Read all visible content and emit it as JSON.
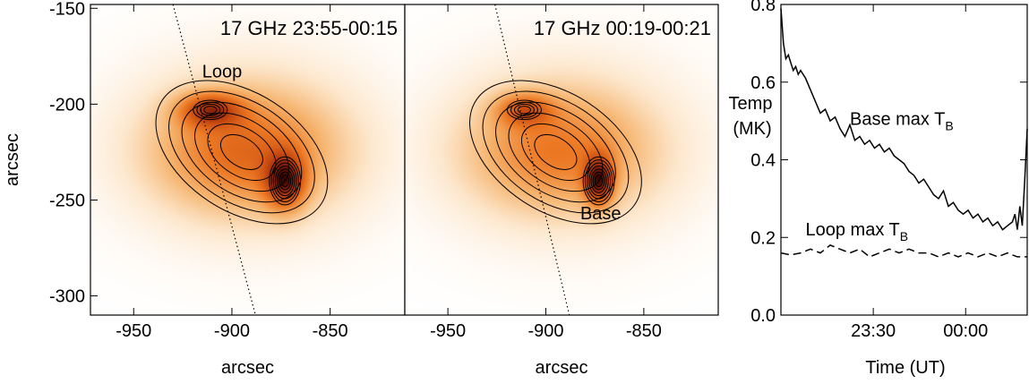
{
  "chart_data": [
    {
      "type": "heatmap",
      "title": "17 GHz 23:55-00:15",
      "xlabel": "arcsec",
      "ylabel": "arcsec",
      "xlim": [
        -972,
        -812
      ],
      "ylim": [
        -310,
        -148
      ],
      "xticks": [
        "-950",
        "-900",
        "-850"
      ],
      "yticks": [
        "-150",
        "-200",
        "-250",
        "-300"
      ],
      "annotations": [
        {
          "text": "Loop",
          "x": -905,
          "y": -186
        }
      ],
      "sources": [
        {
          "x": -873,
          "y": -240,
          "sx": 7,
          "sy": 10,
          "amp": 1.0
        },
        {
          "x": -911,
          "y": -203,
          "sx": 11,
          "sy": 6,
          "amp": 0.85
        },
        {
          "x": -895,
          "y": -225,
          "sx": 30,
          "sy": 20,
          "amp": 0.55
        },
        {
          "x": -890,
          "y": -222,
          "sx": 40,
          "sy": 30,
          "amp": 0.3
        }
      ],
      "dotted_line": [
        [
          -930,
          -148
        ],
        [
          -888,
          -310
        ]
      ]
    },
    {
      "type": "heatmap",
      "title": "17 GHz 00:19-00:21",
      "xlabel": "arcsec",
      "ylabel": "",
      "xlim": [
        -972,
        -812
      ],
      "ylim": [
        -310,
        -148
      ],
      "xticks": [
        "-950",
        "-900",
        "-850"
      ],
      "yticks": [],
      "annotations": [
        {
          "text": "Base",
          "x": -872,
          "y": -260
        }
      ],
      "sources": [
        {
          "x": -873,
          "y": -240,
          "sx": 5,
          "sy": 9,
          "amp": 1.0
        },
        {
          "x": -911,
          "y": -203,
          "sx": 10,
          "sy": 6,
          "amp": 0.6
        },
        {
          "x": -895,
          "y": -225,
          "sx": 30,
          "sy": 20,
          "amp": 0.45
        },
        {
          "x": -890,
          "y": -222,
          "sx": 40,
          "sy": 30,
          "amp": 0.25
        }
      ],
      "dotted_line": [
        [
          -926,
          -148
        ],
        [
          -888,
          -310
        ]
      ]
    },
    {
      "type": "line",
      "title": "",
      "xlabel": "Time (UT)",
      "ylabel": "Temp (MK)",
      "xlim": [
        0,
        100
      ],
      "ylim": [
        0,
        0.8
      ],
      "xticks": [
        "23:30",
        "00:00"
      ],
      "xtick_positions": [
        37.5,
        75
      ],
      "yticks": [
        "0.0",
        "0.2",
        "0.4",
        "0.6",
        "0.8"
      ],
      "series": [
        {
          "name": "Base max T_B",
          "style": "solid",
          "x": [
            0,
            1,
            2,
            3,
            4,
            5,
            6,
            7,
            8,
            10,
            12,
            14,
            16,
            18,
            20,
            22,
            24,
            26,
            28,
            30,
            32,
            34,
            36,
            38,
            40,
            42,
            44,
            46,
            48,
            50,
            52,
            54,
            56,
            58,
            60,
            62,
            64,
            66,
            68,
            70,
            72,
            74,
            76,
            78,
            80,
            82,
            84,
            86,
            88,
            90,
            92,
            94,
            95,
            96,
            97,
            98,
            99,
            100
          ],
          "values": [
            0.79,
            0.7,
            0.66,
            0.67,
            0.65,
            0.63,
            0.64,
            0.62,
            0.63,
            0.61,
            0.58,
            0.55,
            0.52,
            0.53,
            0.5,
            0.51,
            0.48,
            0.46,
            0.49,
            0.45,
            0.46,
            0.44,
            0.45,
            0.43,
            0.44,
            0.42,
            0.43,
            0.41,
            0.4,
            0.39,
            0.37,
            0.36,
            0.34,
            0.35,
            0.33,
            0.31,
            0.3,
            0.32,
            0.28,
            0.29,
            0.27,
            0.26,
            0.27,
            0.25,
            0.26,
            0.24,
            0.25,
            0.23,
            0.24,
            0.22,
            0.23,
            0.24,
            0.26,
            0.22,
            0.28,
            0.23,
            0.35,
            0.48
          ]
        },
        {
          "name": "Loop max T_B",
          "style": "dashed",
          "x": [
            0,
            4,
            8,
            12,
            16,
            20,
            24,
            28,
            32,
            36,
            40,
            44,
            48,
            52,
            56,
            60,
            64,
            68,
            72,
            76,
            80,
            84,
            88,
            92,
            96,
            100
          ],
          "values": [
            0.16,
            0.155,
            0.16,
            0.17,
            0.16,
            0.18,
            0.17,
            0.16,
            0.17,
            0.15,
            0.16,
            0.17,
            0.16,
            0.17,
            0.16,
            0.16,
            0.15,
            0.16,
            0.15,
            0.16,
            0.15,
            0.16,
            0.15,
            0.16,
            0.15,
            0.15
          ]
        }
      ],
      "annotations": [
        {
          "text": "Base max T",
          "sub": "B",
          "x": 28,
          "y": 0.49
        },
        {
          "text": "Loop max T",
          "sub": "B",
          "x": 10,
          "y": 0.205
        }
      ]
    }
  ]
}
